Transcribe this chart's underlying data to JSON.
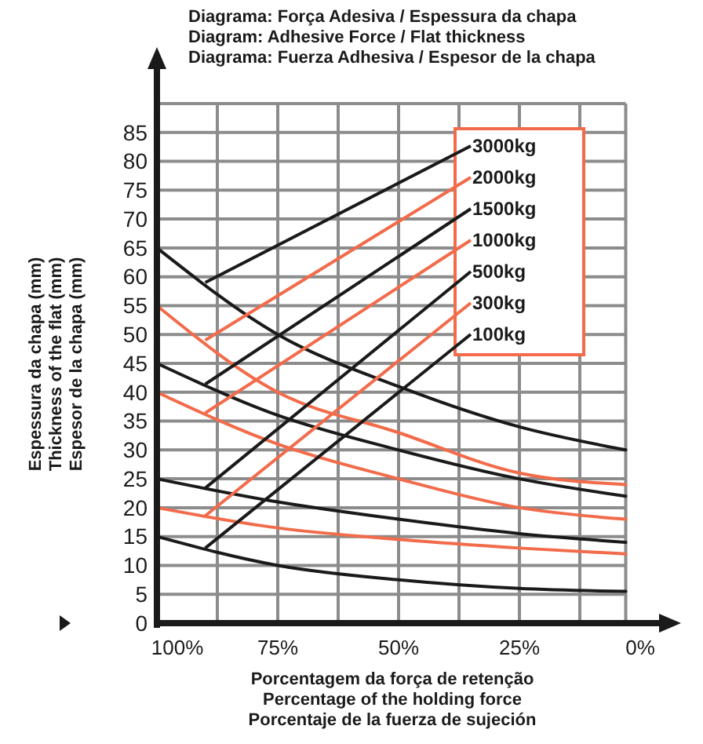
{
  "chart_data": {
    "type": "line",
    "title": "Diagrama: Força Adesiva / Espessura da chapa\nDiagram: Adhesive Force / Flat thickness\nDiagrama: Fuerza Adhesiva / Espesor de la chapa",
    "xlabel": "Porcentagem da força de retenção\nPercentage of the holding force\nPorcentaje de la fuerza de sujeción",
    "ylabel": "Espessura da chapa (mm)\nThickness of the flat (mm)\nEspesor de la chapa (mm)",
    "x": [
      100,
      75,
      50,
      25,
      3
    ],
    "xlim": [
      100,
      0
    ],
    "xticks": [
      {
        "value": 100,
        "label": "100%"
      },
      {
        "value": 87.5,
        "label": null
      },
      {
        "value": 75,
        "label": "75%"
      },
      {
        "value": 62.5,
        "label": null
      },
      {
        "value": 50,
        "label": "50%"
      },
      {
        "value": 37.5,
        "label": null
      },
      {
        "value": 25,
        "label": "25%"
      },
      {
        "value": 12.5,
        "label": null
      },
      {
        "value": 0,
        "label": "0%"
      }
    ],
    "ylim": [
      0,
      90
    ],
    "yticks": [
      0,
      5,
      10,
      15,
      20,
      25,
      30,
      35,
      40,
      45,
      50,
      55,
      60,
      65,
      70,
      75,
      80,
      85
    ],
    "grid": true,
    "legend": "top right",
    "marker": "none",
    "line_style": "solid",
    "series": [
      {
        "name": "3000kg",
        "color": "#1a1a1a",
        "values": [
          65,
          50,
          41,
          34,
          30
        ]
      },
      {
        "name": "2000kg",
        "color": "#f26b4a",
        "values": [
          55,
          40,
          33,
          26,
          24
        ]
      },
      {
        "name": "1500kg",
        "color": "#1a1a1a",
        "values": [
          45,
          36,
          30,
          25,
          22
        ]
      },
      {
        "name": "1000kg",
        "color": "#f26b4a",
        "values": [
          40,
          31,
          25,
          20,
          18
        ]
      },
      {
        "name": "500kg",
        "color": "#1a1a1a",
        "values": [
          25,
          21,
          18,
          15.5,
          14
        ]
      },
      {
        "name": "300kg",
        "color": "#f26b4a",
        "values": [
          20,
          16.5,
          14.5,
          13,
          12
        ]
      },
      {
        "name": "100kg",
        "color": "#1a1a1a",
        "values": [
          15,
          10,
          7.5,
          6,
          5.5
        ]
      }
    ]
  }
}
